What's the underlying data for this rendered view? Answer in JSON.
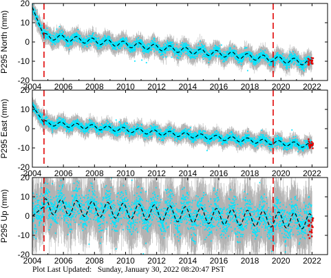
{
  "footer": {
    "text": "Plot Last Updated:   Sunday, January 30, 2022 08:20:47 PST"
  },
  "colors": {
    "error_bars": "#b3b3b3",
    "daily": "#00e5ff",
    "model": "#000000",
    "recent": "#e00000",
    "events": "#e00000"
  },
  "chart_data": [
    {
      "type": "scatter",
      "ylabel": "P295 North (mm)",
      "xlim": [
        2004,
        2023
      ],
      "ylim": [
        -20,
        20
      ],
      "x_ticks": [
        "2004",
        "2006",
        "2008",
        "2010",
        "2012",
        "2014",
        "2016",
        "2018",
        "2020",
        "2022"
      ],
      "y_ticks": [
        "20",
        "10",
        "0",
        "-10",
        "-20"
      ],
      "event_lines_x": [
        2004.75,
        2019.5
      ],
      "trend": {
        "start": 18,
        "knee_x": 2004.75,
        "knee_y": 3,
        "after_slope": -0.85,
        "seasonal_amp": 1.5,
        "offset_at_event2": 0,
        "end": -11
      },
      "scatter_spread": 2.2,
      "error_spread": 4.5,
      "recent_points": {
        "x_range": [
          2021.75,
          2022.08
        ],
        "y_center": -10.5
      }
    },
    {
      "type": "scatter",
      "ylabel": "P295 East (mm)",
      "xlim": [
        2004,
        2023
      ],
      "ylim": [
        -20,
        20
      ],
      "x_ticks": [
        "2004",
        "2006",
        "2008",
        "2010",
        "2012",
        "2014",
        "2016",
        "2018",
        "2020",
        "2022"
      ],
      "y_ticks": [
        "20",
        "10",
        "0",
        "-10",
        "-20"
      ],
      "event_lines_x": [
        2004.75,
        2019.5
      ],
      "trend": {
        "start": 12,
        "knee_x": 2004.75,
        "knee_y": 3,
        "after_slope": -0.45,
        "seasonal_amp": 1.2,
        "offset_at_event2": -3,
        "end": -9
      },
      "scatter_spread": 2.0,
      "error_spread": 4.0,
      "recent_points": {
        "x_range": [
          2021.75,
          2022.08
        ],
        "y_center": -8.5
      }
    },
    {
      "type": "scatter",
      "ylabel": "P295 Up (mm)",
      "xlim": [
        2004,
        2023
      ],
      "ylim": [
        -20,
        20
      ],
      "x_ticks": [
        "2004",
        "2006",
        "2008",
        "2010",
        "2012",
        "2014",
        "2016",
        "2018",
        "2020",
        "2022"
      ],
      "y_ticks": [
        "20",
        "10",
        "0",
        "-10",
        "-20"
      ],
      "event_lines_x": [
        2004.75,
        2019.5
      ],
      "trend": {
        "start": 0,
        "knee_x": 2004.75,
        "knee_y": 5,
        "after_slope": 0,
        "seasonal_amp": 4,
        "offset_at_event2": 0,
        "end": -3
      },
      "scatter_spread": 8,
      "error_spread": 14,
      "recent_points": {
        "x_range": [
          2021.75,
          2022.08
        ],
        "y_center": -5
      }
    }
  ]
}
